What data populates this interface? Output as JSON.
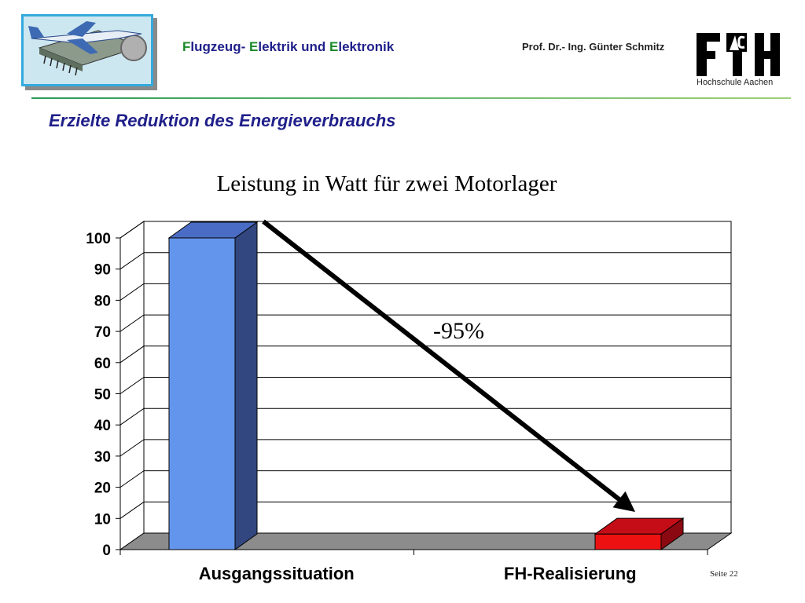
{
  "header": {
    "course_parts": [
      "F",
      "lugzeug- ",
      "E",
      "lektrik und ",
      "E",
      "lektronik"
    ],
    "professor": "Prof. Dr.- Ing. Günter Schmitz",
    "institution": "Hochschule Aachen"
  },
  "slide": {
    "title": "Erzielte Reduktion des Energieverbrauchs",
    "page": "Seite 22"
  },
  "colors": {
    "title_blue": "#1f1f8a",
    "accent_green": "#1a8a2a",
    "bar_blue": "#6495ed",
    "bar_red": "#ee1111"
  },
  "chart_data": {
    "type": "bar",
    "title": "Leistung in Watt für zwei Motorlager",
    "categories": [
      "Ausgangssituation",
      "FH-Realisierung"
    ],
    "values": [
      100,
      5
    ],
    "ylim": [
      0,
      100
    ],
    "yticks": [
      0,
      10,
      20,
      30,
      40,
      50,
      60,
      70,
      80,
      90,
      100
    ],
    "grid": true,
    "three_d": true,
    "annotation": {
      "text": "-95%",
      "arrow": "from first bar to second bar"
    }
  }
}
